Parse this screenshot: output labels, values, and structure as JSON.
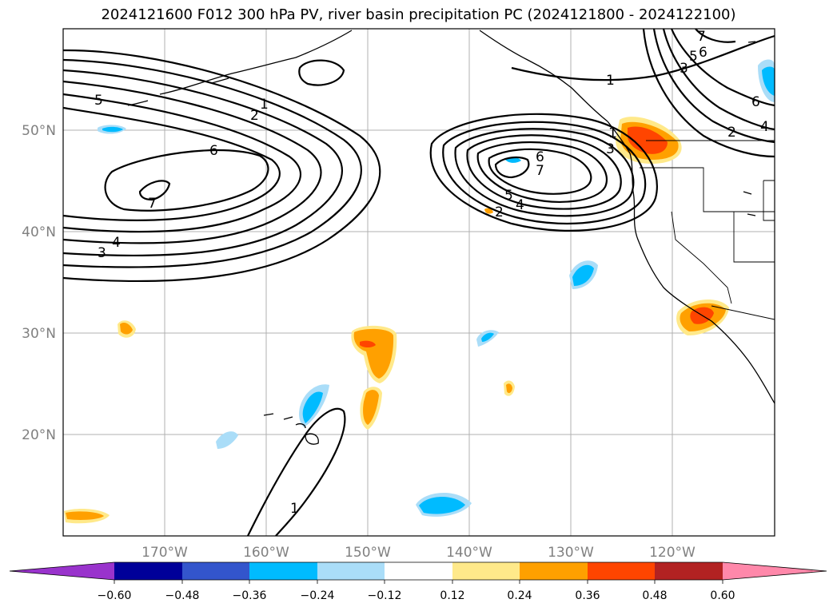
{
  "title": "2024121600 F012 300 hPa PV, river basin precipitation PC (2024121800 - 2024122100)",
  "lat_labels": [
    "50°N",
    "40°N",
    "30°N",
    "20°N"
  ],
  "lon_labels": [
    "170°W",
    "160°W",
    "150°W",
    "140°W",
    "130°W",
    "120°W"
  ],
  "contour_labels": [
    "5",
    "1",
    "2",
    "6",
    "7",
    "4",
    "3",
    "1",
    "6",
    "7",
    "5",
    "4",
    "2",
    "3",
    "1",
    "7",
    "6",
    "5",
    "3",
    "2",
    "4",
    "6",
    "1"
  ],
  "colorbar": {
    "ticks": [
      "−0.60",
      "−0.48",
      "−0.36",
      "−0.24",
      "−0.12",
      "0.12",
      "0.24",
      "0.36",
      "0.48",
      "0.60"
    ],
    "colors": {
      "under": "#9933cc",
      "c1": "#000099",
      "c2": "#3355cc",
      "c3": "#00bbff",
      "c4": "#aaddf8",
      "c5": "#ffffff",
      "c6": "#ffe98a",
      "c7": "#ffa000",
      "c8": "#ff4500",
      "c9": "#b22222",
      "over": "#ff88aa"
    }
  }
}
